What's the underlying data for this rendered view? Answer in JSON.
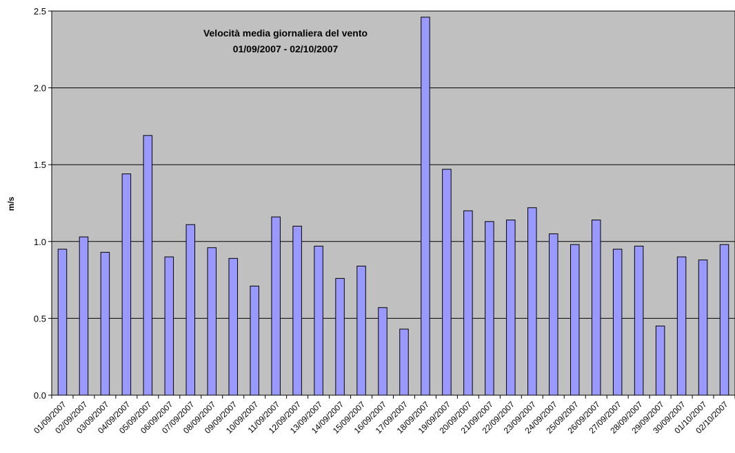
{
  "chart_data": {
    "type": "bar",
    "title": "Velocità media giornaliera del vento",
    "subtitle": "01/09/2007 - 02/10/2007",
    "xlabel": "",
    "ylabel": "m/s",
    "ylim": [
      0,
      2.5
    ],
    "yticks": [
      "0.0",
      "0.5",
      "1.0",
      "1.5",
      "2.0",
      "2.5"
    ],
    "grid": true,
    "legend": "none",
    "colors": {
      "bar": "#9999ff",
      "plot_bg": "#c0c0c0",
      "grid": "#000000"
    },
    "categories": [
      "01/09/2007",
      "02/09/2007",
      "03/09/2007",
      "04/09/2007",
      "05/09/2007",
      "06/09/2007",
      "07/09/2007",
      "08/09/2007",
      "09/09/2007",
      "10/09/2007",
      "11/09/2007",
      "12/09/2007",
      "13/09/2007",
      "14/09/2007",
      "15/09/2007",
      "16/09/2007",
      "17/09/2007",
      "18/09/2007",
      "19/09/2007",
      "20/09/2007",
      "21/09/2007",
      "22/09/2007",
      "23/09/2007",
      "24/09/2007",
      "25/09/2007",
      "26/09/2007",
      "27/09/2007",
      "28/09/2007",
      "29/09/2007",
      "30/09/2007",
      "01/10/2007",
      "02/10/2007"
    ],
    "values": [
      0.95,
      1.03,
      0.93,
      1.44,
      1.69,
      0.9,
      1.11,
      0.96,
      0.89,
      0.71,
      1.16,
      1.1,
      0.97,
      0.76,
      0.84,
      0.57,
      0.43,
      2.46,
      1.47,
      1.2,
      1.13,
      1.14,
      1.22,
      1.05,
      0.98,
      1.14,
      0.95,
      0.97,
      0.45,
      0.9,
      0.88,
      0.98
    ]
  }
}
